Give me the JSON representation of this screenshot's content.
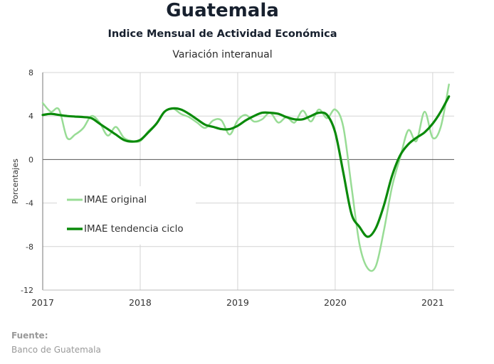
{
  "header": {
    "title": "Guatemala",
    "subtitle": "Indice Mensual de  Actividad Económica",
    "subsubtitle": "Variación interanual"
  },
  "source": {
    "label": "Fuente:",
    "text": "Banco de Guatemala"
  },
  "chart_data": {
    "type": "line",
    "ylabel": "Porcentajes",
    "ylim": [
      -12,
      8
    ],
    "yticks": [
      8,
      4,
      0,
      -4,
      -8,
      -12
    ],
    "xlim": [
      2017.0,
      2021.22
    ],
    "xticks": [
      2017,
      2018,
      2019,
      2020,
      2021
    ],
    "xtick_labels": [
      "2017",
      "2018",
      "2019",
      "2020",
      "2021"
    ],
    "grid": true,
    "legend": "left-middle",
    "series": [
      {
        "name": "IMAE original",
        "color": "#98dc95",
        "x": [
          2017.0,
          2017.083,
          2017.167,
          2017.25,
          2017.333,
          2017.417,
          2017.5,
          2017.583,
          2017.667,
          2017.75,
          2017.833,
          2017.917,
          2018.0,
          2018.083,
          2018.167,
          2018.25,
          2018.333,
          2018.417,
          2018.5,
          2018.583,
          2018.667,
          2018.75,
          2018.833,
          2018.917,
          2019.0,
          2019.083,
          2019.167,
          2019.25,
          2019.333,
          2019.417,
          2019.5,
          2019.583,
          2019.667,
          2019.75,
          2019.833,
          2019.917,
          2020.0,
          2020.083,
          2020.167,
          2020.25,
          2020.333,
          2020.417,
          2020.5,
          2020.583,
          2020.667,
          2020.75,
          2020.833,
          2020.917,
          2021.0,
          2021.083,
          2021.167
        ],
        "values": [
          5.2,
          4.4,
          4.6,
          2.0,
          2.3,
          2.9,
          4.0,
          3.4,
          2.2,
          3.0,
          2.0,
          1.7,
          1.7,
          2.6,
          3.3,
          4.4,
          4.7,
          4.2,
          3.9,
          3.4,
          2.9,
          3.6,
          3.6,
          2.3,
          3.6,
          4.1,
          3.5,
          3.7,
          4.3,
          3.4,
          3.9,
          3.4,
          4.5,
          3.5,
          4.6,
          3.8,
          4.6,
          3.0,
          -2.5,
          -7.8,
          -10.0,
          -9.8,
          -6.5,
          -2.5,
          0.2,
          2.7,
          1.7,
          4.4,
          2.0,
          3.0,
          6.9
        ]
      },
      {
        "name": "IMAE tendencia ciclo",
        "color": "#0a8a0a",
        "x": [
          2017.0,
          2017.083,
          2017.167,
          2017.25,
          2017.333,
          2017.417,
          2017.5,
          2017.583,
          2017.667,
          2017.75,
          2017.833,
          2017.917,
          2018.0,
          2018.083,
          2018.167,
          2018.25,
          2018.333,
          2018.417,
          2018.5,
          2018.583,
          2018.667,
          2018.75,
          2018.833,
          2018.917,
          2019.0,
          2019.083,
          2019.167,
          2019.25,
          2019.333,
          2019.417,
          2019.5,
          2019.583,
          2019.667,
          2019.75,
          2019.833,
          2019.917,
          2020.0,
          2020.083,
          2020.167,
          2020.25,
          2020.333,
          2020.417,
          2020.5,
          2020.583,
          2020.667,
          2020.75,
          2020.833,
          2020.917,
          2021.0,
          2021.083,
          2021.167
        ],
        "values": [
          4.1,
          4.2,
          4.1,
          4.0,
          3.95,
          3.9,
          3.8,
          3.3,
          2.8,
          2.3,
          1.8,
          1.65,
          1.8,
          2.5,
          3.3,
          4.4,
          4.7,
          4.6,
          4.2,
          3.7,
          3.2,
          3.0,
          2.8,
          2.8,
          3.1,
          3.6,
          4.0,
          4.3,
          4.3,
          4.2,
          3.9,
          3.7,
          3.7,
          4.0,
          4.3,
          4.1,
          2.5,
          -1.2,
          -5.0,
          -6.2,
          -7.1,
          -6.3,
          -4.2,
          -1.5,
          0.4,
          1.4,
          2.0,
          2.5,
          3.3,
          4.4,
          5.8
        ]
      }
    ]
  }
}
